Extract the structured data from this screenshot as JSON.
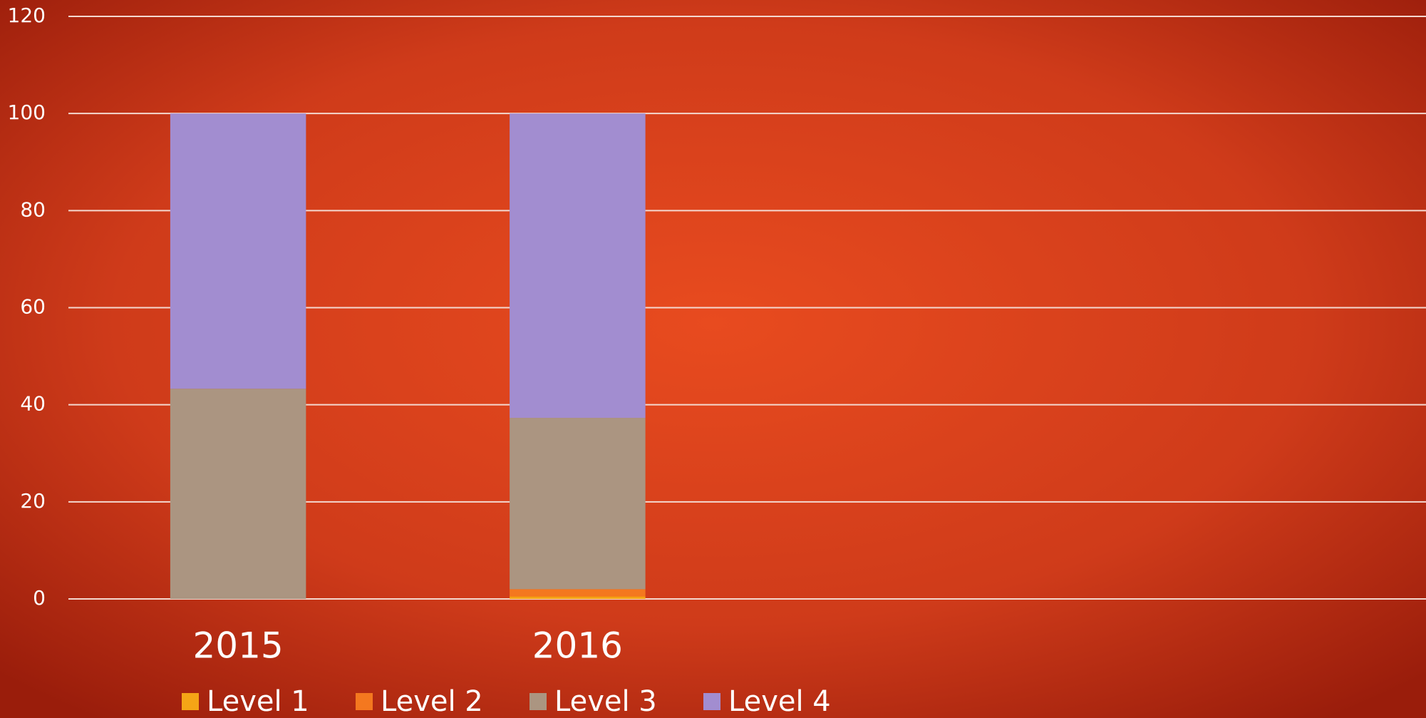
{
  "chart_data": {
    "type": "stacked_bar",
    "categories": [
      "2015",
      "2016",
      null,
      null
    ],
    "series": [
      {
        "name": "Level 1",
        "color": "#f5a516",
        "values": [
          0,
          0.5,
          null,
          null
        ]
      },
      {
        "name": "Level 2",
        "color": "#f4781f",
        "values": [
          0,
          1.5,
          null,
          null
        ]
      },
      {
        "name": "Level 3",
        "color": "#ab9581",
        "values": [
          43.3,
          35.3,
          null,
          null
        ]
      },
      {
        "name": "Level 4",
        "color": "#a28dd0",
        "values": [
          56.7,
          62.7,
          null,
          null
        ]
      }
    ],
    "ylim": [
      0,
      120
    ],
    "yticks": [
      0,
      20,
      40,
      60,
      80,
      100,
      120
    ],
    "grid": true,
    "legend": "bottom"
  }
}
